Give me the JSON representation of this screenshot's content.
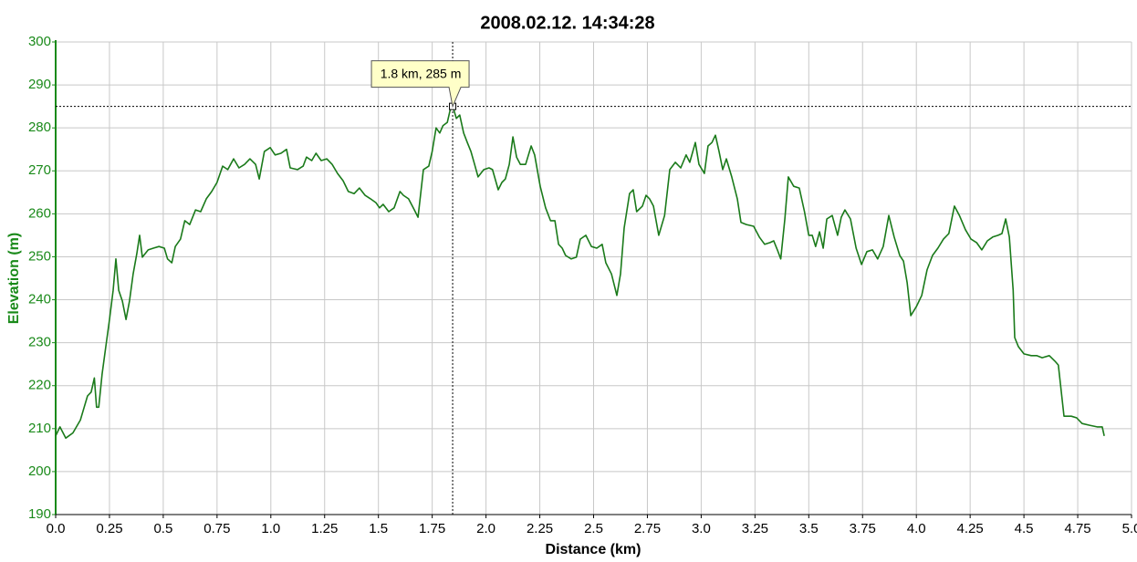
{
  "chart_data": {
    "type": "line",
    "title": "2008.02.12.  14:34:28",
    "xlabel": "Distance (km)",
    "ylabel": "Elevation (m)",
    "color": "#1a7a1a",
    "axis_color": "#1a8a1a",
    "grid": true,
    "xlim": [
      0,
      5
    ],
    "ylim": [
      190,
      300
    ],
    "xticks": [
      {
        "value": 0,
        "label": "0.0"
      },
      0.25,
      0.5,
      0.75,
      {
        "value": 1,
        "label": "1.0"
      },
      1.25,
      1.5,
      1.75,
      {
        "value": 2,
        "label": "2.0"
      },
      2.25,
      2.5,
      2.75,
      {
        "value": 3,
        "label": "3.0"
      },
      3.25,
      3.5,
      3.75,
      {
        "value": 4,
        "label": "4.0"
      },
      4.25,
      4.5,
      4.75,
      {
        "value": 5,
        "label": "5.0"
      }
    ],
    "yticks": [
      190,
      200,
      210,
      220,
      230,
      240,
      250,
      260,
      270,
      280,
      290,
      300
    ],
    "annotation": {
      "x": 1.845,
      "y": 285,
      "label": "1.8 km, 285 m"
    },
    "x": [
      0,
      0.02,
      0.047,
      0.08,
      0.115,
      0.13,
      0.148,
      0.165,
      0.18,
      0.19,
      0.2,
      0.216,
      0.233,
      0.25,
      0.267,
      0.28,
      0.293,
      0.31,
      0.327,
      0.343,
      0.36,
      0.377,
      0.39,
      0.403,
      0.43,
      0.454,
      0.48,
      0.505,
      0.52,
      0.54,
      0.556,
      0.58,
      0.6,
      0.623,
      0.65,
      0.674,
      0.7,
      0.725,
      0.75,
      0.776,
      0.8,
      0.827,
      0.852,
      0.878,
      0.903,
      0.929,
      0.946,
      0.97,
      0.997,
      1.02,
      1.047,
      1.073,
      1.09,
      1.124,
      1.15,
      1.166,
      1.19,
      1.21,
      1.234,
      1.26,
      1.285,
      1.31,
      1.336,
      1.36,
      1.387,
      1.412,
      1.438,
      1.463,
      1.488,
      1.505,
      1.522,
      1.548,
      1.573,
      1.6,
      1.616,
      1.64,
      1.667,
      1.684,
      1.709,
      1.734,
      1.75,
      1.768,
      1.785,
      1.8,
      1.82,
      1.836,
      1.845,
      1.862,
      1.878,
      1.896,
      1.913,
      1.93,
      1.947,
      1.963,
      1.99,
      2.014,
      2.03,
      2.057,
      2.074,
      2.09,
      2.108,
      2.125,
      2.142,
      2.16,
      2.184,
      2.21,
      2.226,
      2.252,
      2.277,
      2.3,
      2.32,
      2.337,
      2.354,
      2.37,
      2.396,
      2.42,
      2.438,
      2.464,
      2.49,
      2.515,
      2.54,
      2.557,
      2.583,
      2.608,
      2.625,
      2.642,
      2.667,
      2.684,
      2.7,
      2.727,
      2.744,
      2.76,
      2.778,
      2.803,
      2.83,
      2.854,
      2.88,
      2.905,
      2.93,
      2.947,
      2.973,
      2.99,
      3.015,
      3.032,
      3.05,
      3.066,
      3.083,
      3.1,
      3.117,
      3.142,
      3.168,
      3.185,
      3.21,
      3.244,
      3.27,
      3.295,
      3.32,
      3.337,
      3.354,
      3.37,
      3.389,
      3.405,
      3.43,
      3.456,
      3.48,
      3.5,
      3.516,
      3.532,
      3.55,
      3.567,
      3.584,
      3.609,
      3.634,
      3.651,
      3.668,
      3.694,
      3.72,
      3.745,
      3.77,
      3.796,
      3.82,
      3.846,
      3.872,
      3.897,
      3.923,
      3.94,
      3.957,
      3.974,
      4.0,
      4.025,
      4.05,
      4.075,
      4.1,
      4.126,
      4.151,
      4.177,
      4.2,
      4.228,
      4.254,
      4.28,
      4.304,
      4.33,
      4.355,
      4.38,
      4.398,
      4.415,
      4.432,
      4.45,
      4.457,
      4.474,
      4.5,
      4.534,
      4.559,
      4.585,
      4.618,
      4.644,
      4.66,
      4.686,
      4.72,
      4.745,
      4.77,
      4.805,
      4.84,
      4.864,
      4.873
    ],
    "values": [
      208.3,
      210.4,
      207.8,
      209,
      212,
      214.6,
      217.6,
      218.5,
      221.8,
      215,
      215,
      222.7,
      229,
      235.4,
      242.2,
      249.5,
      242.2,
      239.7,
      235.4,
      239.7,
      246,
      250.7,
      255,
      249.9,
      251.6,
      252,
      252.4,
      252,
      249.5,
      248.6,
      252.4,
      254.1,
      258.4,
      257.5,
      260.9,
      260.5,
      263.5,
      265.2,
      267.3,
      271.1,
      270.3,
      272.8,
      270.7,
      271.5,
      272.8,
      271.5,
      268.1,
      274.5,
      275.4,
      273.7,
      274.1,
      275,
      270.7,
      270.3,
      271.1,
      273.2,
      272.4,
      274.1,
      272.4,
      272.8,
      271.5,
      269.4,
      267.7,
      265.2,
      264.7,
      266,
      264.3,
      263.5,
      262.6,
      261.4,
      262.2,
      260.5,
      261.4,
      265.2,
      264.3,
      263.5,
      260.9,
      259.2,
      270.3,
      271.1,
      274.5,
      280,
      278.8,
      280.5,
      281.3,
      284.7,
      285.1,
      282.2,
      283,
      278.8,
      276.6,
      274.5,
      271.5,
      268.6,
      270.3,
      270.7,
      270.3,
      265.6,
      267.3,
      268.1,
      271.5,
      277.9,
      273.2,
      271.5,
      271.5,
      275.8,
      273.7,
      266.4,
      261.4,
      258.4,
      258.4,
      252.9,
      252,
      250.3,
      249.5,
      249.9,
      254.1,
      255,
      252.4,
      252,
      252.9,
      248.6,
      246,
      241,
      246,
      256.7,
      264.7,
      265.6,
      260.5,
      261.8,
      264.3,
      263.5,
      261.8,
      255,
      259.6,
      270.3,
      272,
      270.7,
      273.7,
      272,
      276.6,
      271.5,
      269.4,
      275.8,
      276.6,
      278.3,
      274.5,
      270.3,
      272.8,
      268.6,
      263.5,
      258,
      257.5,
      257.1,
      254.6,
      252.9,
      253.3,
      253.7,
      251.6,
      249.5,
      258.8,
      268.6,
      266.4,
      266,
      260.5,
      255,
      255,
      252.4,
      255.8,
      252,
      258.8,
      259.6,
      255,
      259.2,
      260.9,
      258.8,
      252,
      248.2,
      251.2,
      251.6,
      249.5,
      252.4,
      259.6,
      254.6,
      250.3,
      249,
      244,
      236.3,
      238.4,
      241,
      247,
      250.3,
      252,
      254.1,
      255.4,
      261.8,
      259.6,
      256.3,
      254.1,
      253.3,
      251.6,
      253.7,
      254.6,
      255,
      255.4,
      258.8,
      254.6,
      242.2,
      231.2,
      229.1,
      227.4,
      227,
      227,
      226.5,
      227,
      225.7,
      224.8,
      212.9,
      212.9,
      212.5,
      211.2,
      210.8,
      210.4,
      210.4,
      208.3
    ]
  }
}
